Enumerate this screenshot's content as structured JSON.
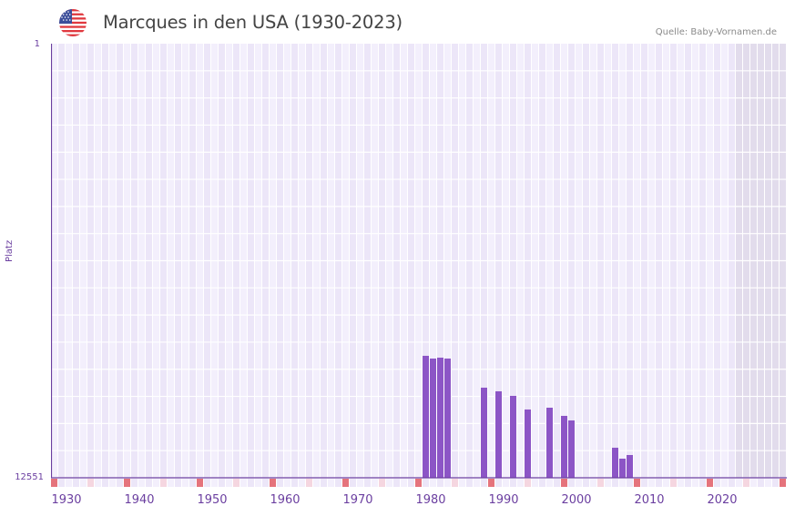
{
  "header": {
    "title": "Marcques in den USA (1930-2023)",
    "flag_icon": "us-flag-icon",
    "source": "Quelle: Baby-Vornamen.de"
  },
  "axis": {
    "y_title": "Platz",
    "y_top_label": "1",
    "y_bottom_label": "12551",
    "x_labels": [
      "1930",
      "1940",
      "1950",
      "1960",
      "1970",
      "1980",
      "1990",
      "2000",
      "2010",
      "2020"
    ]
  },
  "colors": {
    "bar": "#8c55c6",
    "axis_line": "#6b3fa0",
    "grid_col_light": "#f3effc",
    "grid_col_dark": "#ece6f8",
    "future_shade": "#e2dcec",
    "decade_marker": "#e5737c",
    "half_decade_marker": "#f5d6e0"
  },
  "chart_data": {
    "type": "bar",
    "title": "Marcques in den USA (1930-2023)",
    "xlabel": "",
    "ylabel": "Platz",
    "x_range": [
      1930,
      2030
    ],
    "ylim": [
      12551,
      1
    ],
    "y_inverted": true,
    "grid": true,
    "legend": null,
    "annotation": "Quelle: Baby-Vornamen.de",
    "categories": [
      "1981",
      "1982",
      "1983",
      "1984",
      "1989",
      "1991",
      "1993",
      "1995",
      "1998",
      "2000",
      "2001",
      "2007",
      "2008",
      "2009"
    ],
    "values": [
      9025,
      9104,
      9078,
      9104,
      9946,
      10051,
      10183,
      10577,
      10525,
      10761,
      10893,
      11682,
      11998,
      11893
    ]
  }
}
